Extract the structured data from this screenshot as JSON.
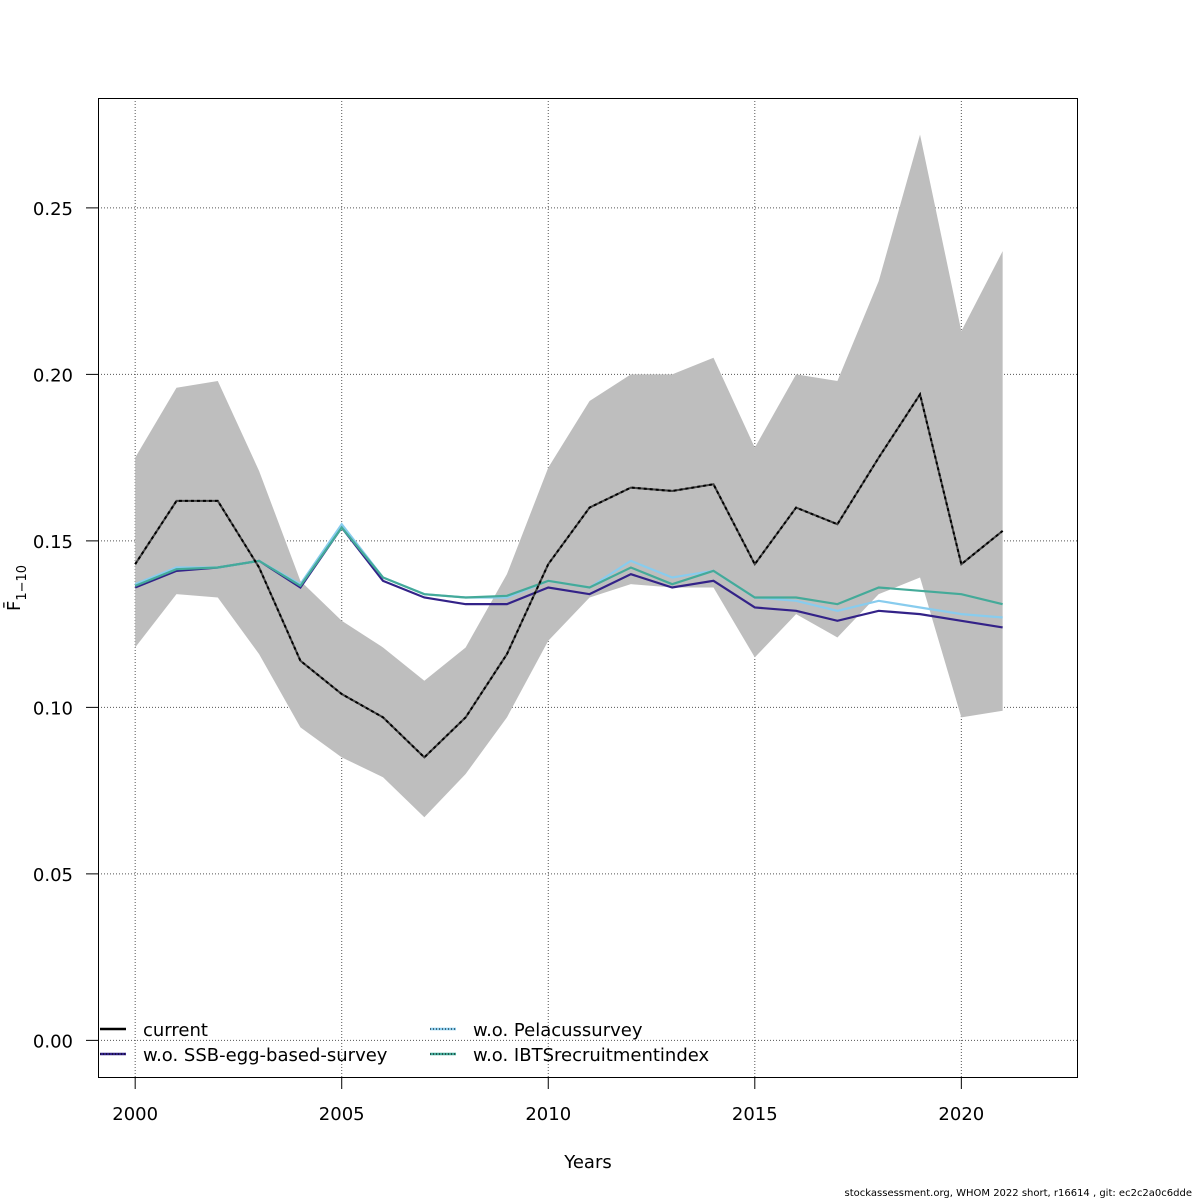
{
  "chart_data": {
    "type": "line",
    "title": "",
    "xlabel": "Years",
    "ylabel": "F̄",
    "ylabel_subscript": "1−10",
    "xlim": [
      1999.1,
      2022.8
    ],
    "ylim": [
      -0.011,
      0.283
    ],
    "grid": true,
    "x_ticks": [
      2000,
      2005,
      2010,
      2015,
      2020
    ],
    "x_tick_labels": [
      "2000",
      "2005",
      "2010",
      "2015",
      "2020"
    ],
    "y_ticks": [
      0.0,
      0.05,
      0.1,
      0.15,
      0.2,
      0.25
    ],
    "y_tick_labels": [
      "0.00",
      "0.05",
      "0.10",
      "0.15",
      "0.20",
      "0.25"
    ],
    "x": [
      2000,
      2001,
      2002,
      2003,
      2004,
      2005,
      2006,
      2007,
      2008,
      2009,
      2010,
      2011,
      2012,
      2013,
      2014,
      2015,
      2016,
      2017,
      2018,
      2019,
      2020,
      2021
    ],
    "confidence_band": {
      "name": "current 95% CI",
      "color": "#bebebe",
      "lower": [
        0.118,
        0.134,
        0.133,
        0.116,
        0.094,
        0.085,
        0.079,
        0.067,
        0.08,
        0.097,
        0.12,
        0.133,
        0.137,
        0.136,
        0.136,
        0.115,
        0.128,
        0.121,
        0.134,
        0.139,
        0.097,
        0.099
      ],
      "upper": [
        0.175,
        0.196,
        0.198,
        0.171,
        0.138,
        0.126,
        0.118,
        0.108,
        0.118,
        0.14,
        0.172,
        0.192,
        0.2,
        0.2,
        0.205,
        0.178,
        0.2,
        0.198,
        0.228,
        0.272,
        0.213,
        0.237
      ]
    },
    "series": [
      {
        "name": "current",
        "legend_label": "current",
        "color": "#000000",
        "style": "dashed-black",
        "values": [
          0.143,
          0.162,
          0.162,
          0.142,
          0.114,
          0.104,
          0.097,
          0.085,
          0.097,
          0.116,
          0.143,
          0.16,
          0.166,
          0.165,
          0.167,
          0.143,
          0.16,
          0.155,
          0.175,
          0.194,
          0.143,
          0.153
        ]
      },
      {
        "name": "w.o. SSB-egg-based-survey",
        "legend_label": "w.o. SSB-egg-based-survey",
        "color": "#332288",
        "style": "solid",
        "values": [
          0.136,
          0.141,
          0.142,
          0.144,
          0.136,
          0.154,
          0.138,
          0.133,
          0.131,
          0.131,
          0.136,
          0.134,
          0.14,
          0.136,
          0.138,
          0.13,
          0.129,
          0.126,
          0.129,
          0.128,
          0.126,
          0.124
        ]
      },
      {
        "name": "w.o. Pelacussurvey",
        "legend_label": "w.o. Pelacussurvey",
        "color": "#88ccee",
        "style": "solid",
        "values": [
          0.137,
          0.142,
          0.142,
          0.144,
          0.137,
          0.155,
          0.139,
          0.134,
          0.133,
          0.133,
          0.138,
          0.136,
          0.144,
          0.139,
          0.141,
          0.133,
          0.132,
          0.129,
          0.132,
          0.13,
          0.128,
          0.127
        ]
      },
      {
        "name": "w.o. IBTSrecruitmentindex",
        "legend_label": "w.o. IBTSrecruitmentindex",
        "color": "#44aa99",
        "style": "solid",
        "values": [
          0.1365,
          0.1415,
          0.142,
          0.144,
          0.1365,
          0.154,
          0.139,
          0.134,
          0.133,
          0.1335,
          0.138,
          0.136,
          0.142,
          0.137,
          0.141,
          0.133,
          0.133,
          0.131,
          0.136,
          0.135,
          0.134,
          0.131
        ]
      }
    ],
    "legend_position": "bottom-left"
  },
  "footer": {
    "text": "stockassessment.org, WHOM  2022  short, r16614 , git: ec2c2a0c6dde"
  }
}
